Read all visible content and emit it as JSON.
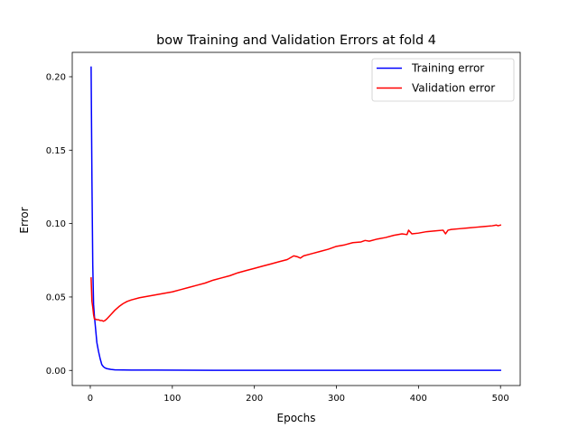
{
  "chart_data": {
    "type": "line",
    "title": "bow Training and Validation Errors at fold 4",
    "xlabel": "Epochs",
    "ylabel": "Error",
    "xlim": [
      -22,
      524
    ],
    "ylim": [
      -0.0103,
      0.2166
    ],
    "xticks": [
      0,
      100,
      200,
      300,
      400,
      500
    ],
    "xtick_labels": [
      "0",
      "100",
      "200",
      "300",
      "400",
      "500"
    ],
    "yticks": [
      0.0,
      0.05,
      0.1,
      0.15,
      0.2
    ],
    "ytick_labels": [
      "0.00",
      "0.05",
      "0.10",
      "0.15",
      "0.20"
    ],
    "grid": false,
    "legend_position": "top-right",
    "series": [
      {
        "name": "Training error",
        "color": "#0000ff",
        "x": [
          1,
          2,
          3,
          4,
          5,
          6,
          7,
          8,
          9,
          10,
          12,
          14,
          16,
          18,
          20,
          25,
          30,
          40,
          50,
          80,
          150,
          300,
          500
        ],
        "y": [
          0.2065,
          0.13,
          0.072,
          0.045,
          0.037,
          0.031,
          0.025,
          0.019,
          0.016,
          0.013,
          0.008,
          0.004,
          0.0025,
          0.0017,
          0.0012,
          0.0007,
          0.0004,
          0.0003,
          0.0002,
          0.0002,
          0.0001,
          0.0001,
          0.0001
        ]
      },
      {
        "name": "Validation error",
        "color": "#ff0000",
        "x": [
          1,
          2,
          3,
          4,
          5,
          6,
          8,
          10,
          12,
          14,
          16,
          18,
          20,
          25,
          30,
          35,
          40,
          45,
          50,
          60,
          70,
          80,
          90,
          100,
          110,
          120,
          130,
          140,
          150,
          160,
          170,
          180,
          190,
          200,
          210,
          220,
          230,
          240,
          248,
          252,
          256,
          260,
          270,
          280,
          290,
          300,
          310,
          320,
          330,
          335,
          340,
          350,
          360,
          370,
          380,
          386,
          388,
          392,
          400,
          410,
          420,
          430,
          433,
          436,
          440,
          450,
          460,
          470,
          480,
          490,
          495,
          497,
          500
        ],
        "y": [
          0.063,
          0.047,
          0.043,
          0.038,
          0.035,
          0.035,
          0.0345,
          0.0345,
          0.034,
          0.034,
          0.0335,
          0.034,
          0.035,
          0.038,
          0.041,
          0.0435,
          0.0455,
          0.047,
          0.048,
          0.0495,
          0.0505,
          0.0515,
          0.0525,
          0.0535,
          0.055,
          0.0565,
          0.058,
          0.0595,
          0.0615,
          0.063,
          0.0645,
          0.0665,
          0.068,
          0.0695,
          0.071,
          0.0725,
          0.074,
          0.0755,
          0.078,
          0.0775,
          0.0765,
          0.078,
          0.0795,
          0.081,
          0.0825,
          0.0845,
          0.0855,
          0.087,
          0.0875,
          0.0885,
          0.088,
          0.0895,
          0.0905,
          0.092,
          0.093,
          0.0925,
          0.0955,
          0.093,
          0.0935,
          0.0945,
          0.095,
          0.0955,
          0.093,
          0.0955,
          0.096,
          0.0965,
          0.097,
          0.0975,
          0.098,
          0.0985,
          0.099,
          0.0985,
          0.099
        ]
      }
    ]
  }
}
